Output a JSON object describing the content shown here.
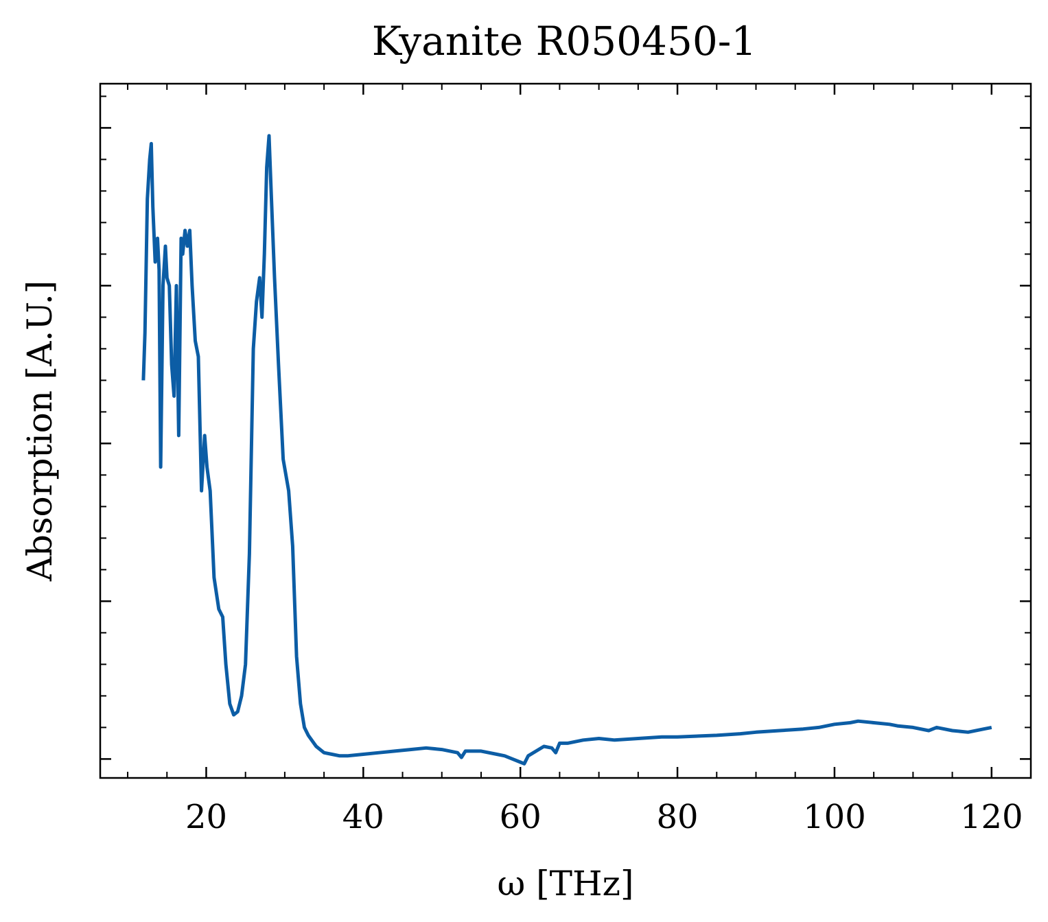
{
  "chart_data": {
    "type": "line",
    "title": "Kyanite R050450-1",
    "xlabel": "ω [THz]",
    "ylabel": "Absorption [A.U.]",
    "xlim": [
      6.5,
      125
    ],
    "ylim": [
      -0.12,
      4.28
    ],
    "x_ticks": [
      20,
      40,
      60,
      80,
      100,
      120
    ],
    "x_tick_labels": [
      "20",
      "40",
      "60",
      "80",
      "100",
      "120"
    ],
    "y_ticks": [
      0,
      1,
      2,
      3,
      4
    ],
    "y_tick_labels_shown": false,
    "grid": false,
    "line_color": "#0c5da5",
    "series": [
      {
        "x": [
          12.0,
          12.2,
          12.5,
          12.8,
          13.0,
          13.2,
          13.5,
          13.8,
          14.0,
          14.2,
          14.5,
          14.8,
          15.0,
          15.3,
          15.6,
          15.9,
          16.2,
          16.5,
          16.8,
          17.0,
          17.3,
          17.6,
          17.9,
          18.2,
          18.6,
          19.0,
          19.4,
          19.8,
          20.1,
          20.5,
          21.0,
          21.6,
          22.1,
          22.5,
          23.0,
          23.5,
          24.0,
          24.5,
          25.0,
          25.5,
          26.0,
          26.4,
          26.8,
          27.1,
          27.4,
          27.7,
          28.0,
          28.3,
          28.7,
          29.2,
          29.8,
          30.5,
          31.0,
          31.5,
          32.0,
          32.5,
          33.0,
          34.0,
          35.0,
          36.0,
          37.0,
          38.0,
          40.0,
          42.0,
          44.0,
          46.0,
          48.0,
          50.0,
          52.0,
          52.5,
          53.0,
          55.0,
          57.0,
          58.0,
          59.0,
          60.0,
          60.5,
          61.0,
          62.0,
          63.0,
          64.0,
          64.5,
          65.0,
          66.0,
          68.0,
          70.0,
          72.0,
          75.0,
          78.0,
          80.0,
          85.0,
          88.0,
          90.0,
          93.0,
          96.0,
          98.0,
          100.0,
          102.0,
          103.0,
          105.0,
          107.0,
          108.0,
          110.0,
          112.0,
          113.0,
          115.0,
          117.0,
          119.0,
          120.0
        ],
        "y": [
          2.4,
          2.7,
          3.55,
          3.8,
          3.9,
          3.5,
          3.15,
          3.3,
          3.1,
          1.85,
          3.0,
          3.25,
          3.05,
          3.0,
          2.5,
          2.3,
          3.0,
          2.05,
          3.3,
          3.2,
          3.35,
          3.25,
          3.35,
          3.0,
          2.65,
          2.55,
          1.7,
          2.05,
          1.85,
          1.7,
          1.15,
          0.95,
          0.9,
          0.6,
          0.35,
          0.28,
          0.3,
          0.4,
          0.6,
          1.3,
          2.6,
          2.9,
          3.05,
          2.8,
          3.2,
          3.75,
          3.95,
          3.55,
          3.05,
          2.5,
          1.9,
          1.7,
          1.35,
          0.65,
          0.35,
          0.2,
          0.15,
          0.08,
          0.04,
          0.03,
          0.02,
          0.02,
          0.03,
          0.04,
          0.05,
          0.06,
          0.07,
          0.06,
          0.04,
          0.01,
          0.05,
          0.05,
          0.03,
          0.02,
          0.0,
          -0.02,
          -0.03,
          0.02,
          0.05,
          0.08,
          0.07,
          0.04,
          0.1,
          0.1,
          0.12,
          0.13,
          0.12,
          0.13,
          0.14,
          0.14,
          0.15,
          0.16,
          0.17,
          0.18,
          0.19,
          0.2,
          0.22,
          0.23,
          0.24,
          0.23,
          0.22,
          0.21,
          0.2,
          0.18,
          0.2,
          0.18,
          0.17,
          0.19,
          0.2
        ]
      }
    ]
  }
}
